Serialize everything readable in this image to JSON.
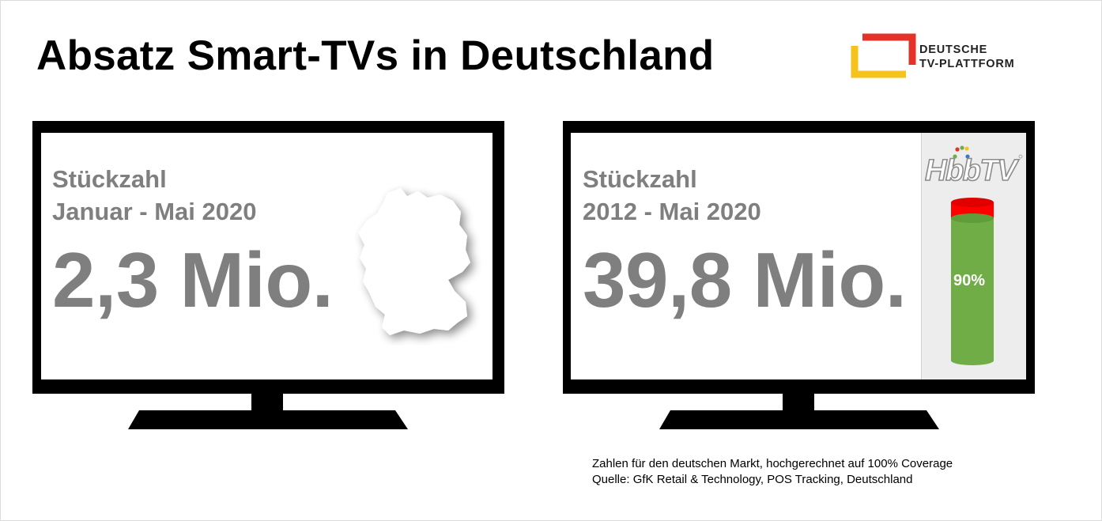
{
  "title": "Absatz Smart-TVs in Deutschland",
  "logo": {
    "line1": "DEUTSCHE",
    "line2": "TV-PLATTFORM",
    "colors": {
      "red": "#e53228",
      "yellow": "#f6c21c"
    }
  },
  "tv_left": {
    "label1": "Stückzahl",
    "label2": "Januar - Mai 2020",
    "value": "2,3 Mio.",
    "image": "germany-map-silhouette"
  },
  "tv_right": {
    "label1": "Stückzahl",
    "label2": "2012 - Mai 2020",
    "value": "39,8 Mio.",
    "brand": "HbbTV",
    "hbbtv_share_percent": 90,
    "hbbtv_share_label": "90%",
    "colors": {
      "green": "#70ad47",
      "red": "#ff0000"
    }
  },
  "footnote": {
    "line1": "Zahlen für den deutschen Markt, hochgerechnet auf 100% Coverage",
    "line2": "Quelle: GfK Retail & Technology, POS Tracking, Deutschland"
  }
}
